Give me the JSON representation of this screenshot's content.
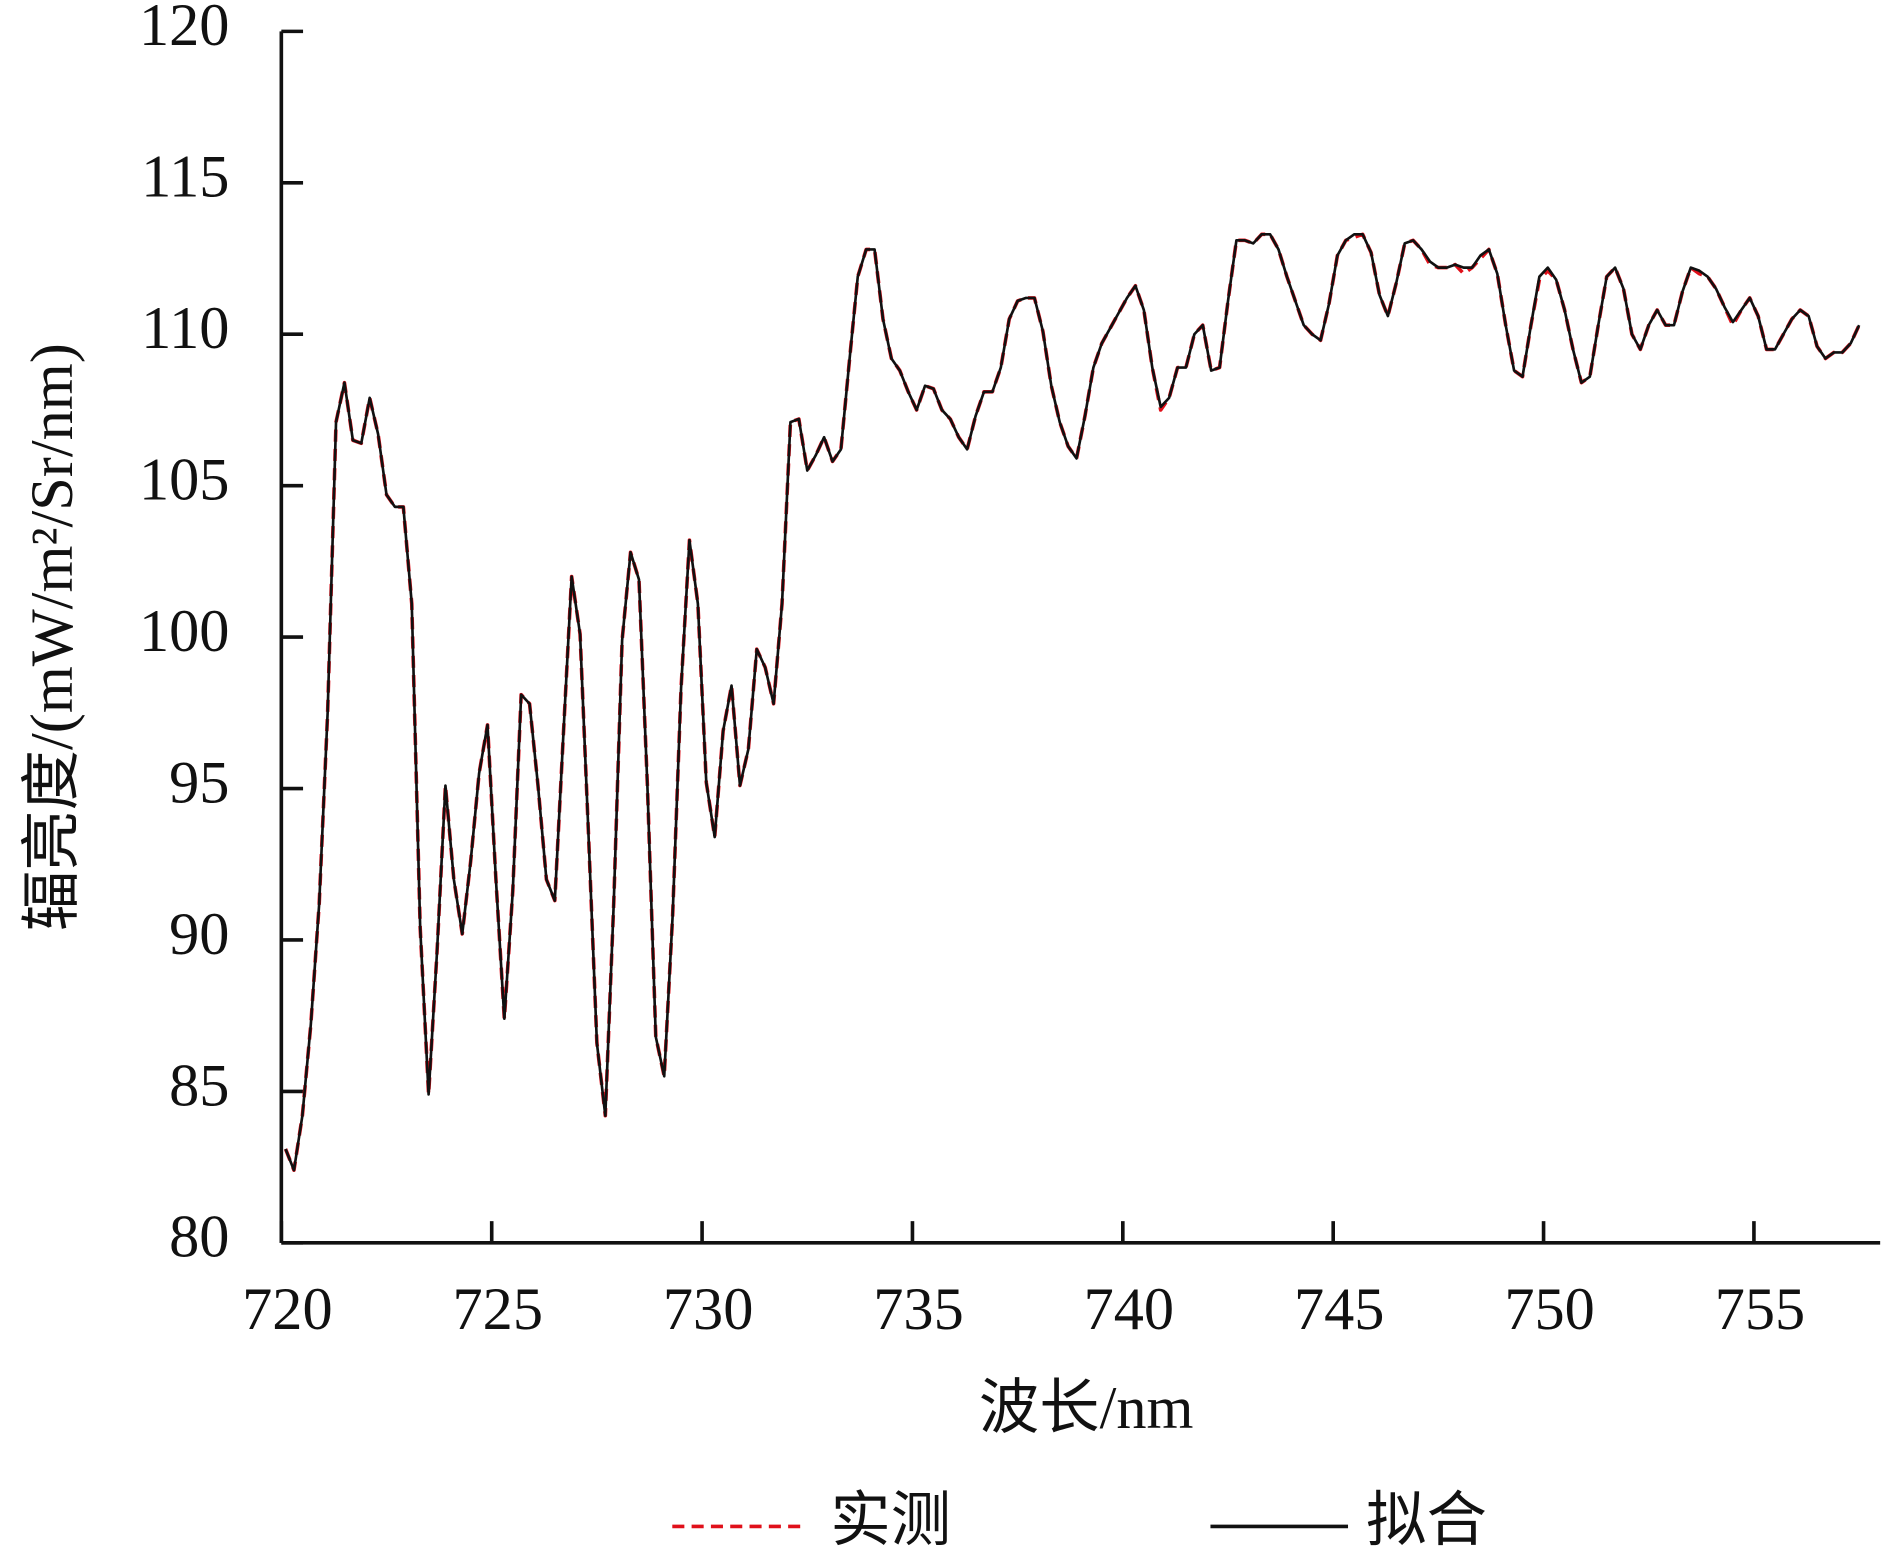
{
  "chart_data": {
    "type": "line",
    "x_label": "波长/nm",
    "y_label": "辐亮度/(mW/m²/Sr/nm)",
    "xlim": [
      720,
      758
    ],
    "ylim": [
      80,
      120
    ],
    "xticks": [
      720,
      725,
      730,
      735,
      740,
      745,
      750,
      755
    ],
    "yticks": [
      80,
      85,
      90,
      95,
      100,
      105,
      110,
      115,
      120
    ],
    "legend": "bottom",
    "x": [
      720.1,
      720.3,
      720.5,
      720.7,
      720.9,
      721.1,
      721.3,
      721.5,
      721.7,
      721.9,
      722.1,
      722.3,
      722.5,
      722.7,
      722.9,
      723.1,
      723.3,
      723.5,
      723.7,
      723.9,
      724.1,
      724.3,
      724.5,
      724.7,
      724.9,
      725.1,
      725.3,
      725.5,
      725.7,
      725.9,
      726.1,
      726.3,
      726.5,
      726.7,
      726.9,
      727.1,
      727.3,
      727.5,
      727.7,
      727.9,
      728.1,
      728.3,
      728.5,
      728.7,
      728.9,
      729.1,
      729.3,
      729.5,
      729.7,
      729.9,
      730.1,
      730.3,
      730.5,
      730.7,
      730.9,
      731.1,
      731.3,
      731.5,
      731.7,
      731.9,
      732.1,
      732.3,
      732.5,
      732.7,
      732.9,
      733.1,
      733.3,
      733.5,
      733.7,
      733.9,
      734.1,
      734.3,
      734.5,
      734.7,
      734.9,
      735.1,
      735.3,
      735.5,
      735.7,
      735.9,
      736.1,
      736.3,
      736.5,
      736.7,
      736.9,
      737.1,
      737.3,
      737.5,
      737.7,
      737.9,
      738.1,
      738.3,
      738.5,
      738.7,
      738.9,
      739.1,
      739.3,
      739.5,
      739.7,
      739.9,
      740.1,
      740.3,
      740.5,
      740.7,
      740.9,
      741.1,
      741.3,
      741.5,
      741.7,
      741.9,
      742.1,
      742.3,
      742.5,
      742.7,
      742.9,
      743.1,
      743.3,
      743.5,
      743.7,
      743.9,
      744.1,
      744.3,
      744.5,
      744.7,
      744.9,
      745.1,
      745.3,
      745.5,
      745.7,
      745.9,
      746.1,
      746.3,
      746.5,
      746.7,
      746.9,
      747.1,
      747.3,
      747.5,
      747.7,
      747.9,
      748.1,
      748.3,
      748.5,
      748.7,
      748.9,
      749.1,
      749.3,
      749.5,
      749.7,
      749.9,
      750.1,
      750.3,
      750.5,
      750.7,
      750.9,
      751.1,
      751.3,
      751.5,
      751.7,
      751.9,
      752.1,
      752.3,
      752.5,
      752.7,
      752.9,
      753.1,
      753.3,
      753.5,
      753.7,
      753.9,
      754.1,
      754.3,
      754.5,
      754.7,
      754.9,
      755.1,
      755.3,
      755.5,
      755.7,
      755.9,
      756.1,
      756.3,
      756.5,
      756.7,
      756.9,
      757.1,
      757.3,
      757.5
    ],
    "series": [
      {
        "name": "实测",
        "color": "#e0101a",
        "dash": true,
        "values": [
          83.1,
          82.4,
          84.2,
          87.2,
          91.2,
          97.5,
          107.1,
          108.4,
          106.5,
          106.4,
          107.9,
          106.7,
          104.7,
          104.3,
          104.3,
          101.1,
          90.4,
          84.9,
          89.6,
          95.1,
          92.0,
          90.2,
          92.6,
          95.5,
          97.1,
          92.0,
          87.4,
          91.6,
          98.1,
          97.8,
          95.1,
          92.0,
          91.3,
          96.7,
          102.0,
          100.1,
          93.5,
          86.6,
          84.2,
          91.2,
          99.9,
          102.8,
          101.9,
          95.1,
          86.8,
          85.5,
          90.8,
          98.3,
          103.2,
          101.1,
          95.2,
          93.4,
          96.9,
          98.4,
          95.1,
          96.3,
          99.6,
          99.0,
          97.8,
          101.1,
          107.1,
          107.2,
          105.5,
          106.0,
          106.6,
          105.8,
          106.2,
          109.1,
          111.9,
          112.8,
          112.8,
          110.5,
          109.2,
          108.8,
          108.1,
          107.5,
          108.3,
          108.2,
          107.5,
          107.2,
          106.6,
          106.2,
          107.3,
          108.1,
          108.1,
          108.9,
          110.5,
          111.1,
          111.2,
          111.2,
          110.1,
          108.3,
          107.1,
          106.3,
          105.9,
          107.3,
          108.9,
          109.7,
          110.2,
          110.7,
          111.2,
          111.6,
          110.8,
          108.9,
          107.5,
          107.9,
          108.9,
          108.9,
          110.0,
          110.3,
          108.8,
          108.9,
          111.1,
          113.1,
          113.1,
          113.0,
          113.3,
          113.3,
          112.8,
          111.9,
          111.1,
          110.3,
          110.0,
          109.8,
          111.0,
          112.6,
          113.1,
          113.2,
          113.3,
          112.7,
          111.3,
          110.6,
          111.7,
          113.0,
          113.1,
          112.8,
          112.3,
          112.2,
          112.2,
          112.3,
          112.0,
          112.2,
          112.5,
          112.8,
          112.0,
          110.3,
          108.8,
          108.6,
          110.3,
          111.8,
          112.1,
          111.8,
          110.8,
          109.5,
          108.4,
          108.6,
          110.3,
          111.9,
          112.2,
          111.5,
          110.0,
          109.5,
          110.3,
          110.8,
          110.3,
          110.3,
          111.4,
          112.2,
          112.0,
          111.9,
          111.5,
          110.9,
          110.3,
          110.8,
          111.2,
          110.6,
          109.5,
          109.5,
          110.0,
          110.5,
          110.8,
          110.6,
          109.6,
          109.2,
          109.4,
          109.4,
          109.7,
          110.3
        ]
      },
      {
        "name": "拟合",
        "color": "#111111",
        "dash": false,
        "values": [
          83.1,
          82.4,
          84.2,
          87.2,
          91.2,
          97.5,
          107.1,
          108.4,
          106.5,
          106.4,
          107.9,
          106.7,
          104.7,
          104.3,
          104.3,
          101.1,
          90.4,
          84.9,
          89.6,
          95.1,
          92.0,
          90.2,
          92.6,
          95.5,
          97.1,
          92.0,
          87.4,
          91.6,
          98.1,
          97.8,
          95.1,
          92.0,
          91.3,
          96.7,
          102.0,
          100.1,
          93.5,
          86.6,
          84.2,
          91.2,
          99.9,
          102.8,
          101.9,
          95.1,
          86.8,
          85.5,
          90.8,
          98.3,
          103.2,
          101.1,
          95.2,
          93.4,
          96.9,
          98.4,
          95.1,
          96.3,
          99.6,
          99.0,
          97.8,
          101.1,
          107.1,
          107.2,
          105.5,
          106.0,
          106.6,
          105.8,
          106.2,
          109.1,
          111.9,
          112.8,
          112.8,
          110.5,
          109.2,
          108.8,
          108.1,
          107.5,
          108.3,
          108.2,
          107.5,
          107.2,
          106.6,
          106.2,
          107.3,
          108.1,
          108.1,
          108.9,
          110.5,
          111.1,
          111.2,
          111.2,
          110.1,
          108.3,
          107.1,
          106.3,
          105.9,
          107.3,
          108.9,
          109.7,
          110.2,
          110.7,
          111.2,
          111.6,
          110.8,
          108.9,
          107.6,
          107.9,
          108.9,
          108.9,
          110.0,
          110.3,
          108.8,
          108.9,
          111.1,
          113.1,
          113.1,
          113.0,
          113.3,
          113.3,
          112.8,
          111.9,
          111.1,
          110.3,
          110.0,
          109.8,
          111.0,
          112.6,
          113.1,
          113.3,
          113.3,
          112.7,
          111.3,
          110.6,
          111.7,
          113.0,
          113.1,
          112.8,
          112.4,
          112.2,
          112.2,
          112.3,
          112.2,
          112.2,
          112.6,
          112.8,
          112.0,
          110.3,
          108.8,
          108.6,
          110.3,
          111.9,
          112.2,
          111.8,
          110.8,
          109.5,
          108.4,
          108.6,
          110.3,
          111.9,
          112.2,
          111.5,
          110.0,
          109.5,
          110.3,
          110.8,
          110.3,
          110.3,
          111.4,
          112.2,
          112.1,
          111.9,
          111.5,
          110.9,
          110.4,
          110.8,
          111.2,
          110.6,
          109.5,
          109.5,
          110.0,
          110.5,
          110.8,
          110.6,
          109.6,
          109.2,
          109.4,
          109.4,
          109.7,
          110.3
        ]
      }
    ]
  }
}
